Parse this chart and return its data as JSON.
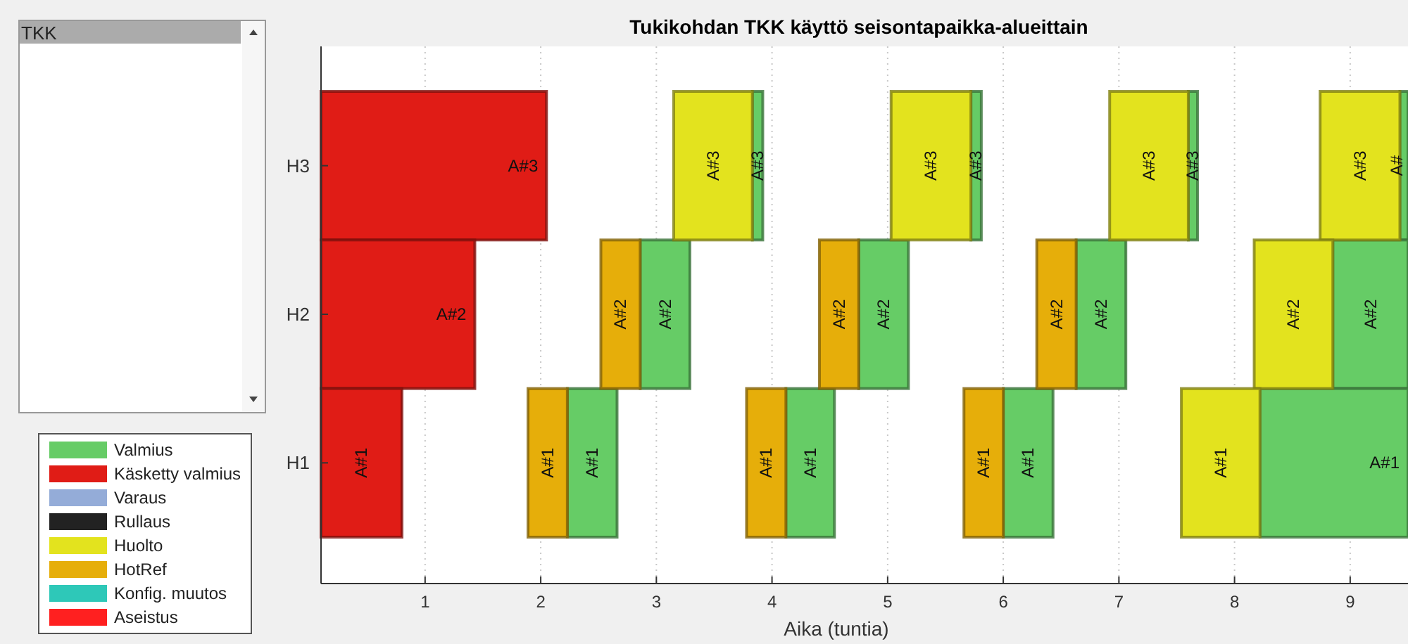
{
  "chart_data": {
    "type": "bar",
    "orientation": "horizontal",
    "title": "Tukikohdan TKK käyttö seisontapaikka-alueittain",
    "xlabel": "Aika (tuntia)",
    "categories": [
      "H3",
      "H2",
      "H1"
    ],
    "xlim": [
      0.1,
      9.5
    ],
    "xticks": [
      1,
      2,
      3,
      4,
      5,
      6,
      7,
      8,
      9
    ],
    "grid": "x",
    "legend": "left",
    "annotations": [
      "TKK",
      {
        "text": "A#3",
        "x": 2.05,
        "y": "H3"
      },
      {
        "text": "A#2",
        "x": 1.43,
        "y": "H2"
      },
      {
        "text": "A#1",
        "x": 0.8,
        "y": "H1"
      },
      {
        "text": "A#3",
        "x": 3.92,
        "y": "H3"
      },
      {
        "text": "A#2",
        "x": 3.29,
        "y": "H2"
      },
      {
        "text": "A#1",
        "x": 2.66,
        "y": "H1"
      },
      {
        "text": "A#3",
        "x": 3.83,
        "y": "H3"
      },
      {
        "text": "A#2",
        "x": 2.86,
        "y": "H2"
      },
      {
        "text": "A#1",
        "x": 2.23,
        "y": "H1"
      },
      {
        "text": "A#3",
        "x": 5.81,
        "y": "H3"
      },
      {
        "text": "A#2",
        "x": 5.18,
        "y": "H2"
      },
      {
        "text": "A#1",
        "x": 4.54,
        "y": "H1"
      },
      {
        "text": "A#3",
        "x": 5.72,
        "y": "H3"
      },
      {
        "text": "A#2",
        "x": 4.75,
        "y": "H2"
      },
      {
        "text": "A#1",
        "x": 4.12,
        "y": "H1"
      },
      {
        "text": "A#3",
        "x": 7.68,
        "y": "H3"
      },
      {
        "text": "A#2",
        "x": 7.06,
        "y": "H2"
      },
      {
        "text": "A#1",
        "x": 6.43,
        "y": "H1"
      },
      {
        "text": "A#3",
        "x": 7.6,
        "y": "H3"
      },
      {
        "text": "A#2",
        "x": 6.63,
        "y": "H2"
      },
      {
        "text": "A#1",
        "x": 6.0,
        "y": "H1"
      },
      {
        "text": "A#",
        "x": 9.5,
        "y": "H3"
      },
      {
        "text": "A#2",
        "x": 9.5,
        "y": "H2"
      },
      {
        "text": "A#1",
        "x": 9.5,
        "y": "H1"
      },
      {
        "text": "A#3",
        "x": 9.43,
        "y": "H3"
      },
      {
        "text": "A#2",
        "x": 8.85,
        "y": "H2"
      },
      {
        "text": "A#1",
        "x": 8.22,
        "y": "H1"
      }
    ],
    "series": [
      {
        "name": "Valmius",
        "color": "#66cc66",
        "base": [
          3.83,
          2.86,
          2.23
        ],
        "values": [
          0.09,
          0.43,
          0.43
        ]
      },
      {
        "name": "Käsketty valmius",
        "color": "#e01c16",
        "base": [
          0.1,
          0.1,
          0.1
        ],
        "values": [
          1.95,
          1.33,
          0.7
        ]
      },
      {
        "name": "Varaus",
        "color": "#94acd8",
        "base": [
          null,
          null,
          null
        ],
        "values": [
          null,
          null,
          null
        ]
      },
      {
        "name": "Rullaus",
        "color": "#222222",
        "base": [
          null,
          null,
          null
        ],
        "values": [
          null,
          null,
          null
        ]
      },
      {
        "name": "Huolto",
        "color": "#e3e31e",
        "base": [
          3.15,
          null,
          null
        ],
        "values": [
          0.68,
          null,
          null
        ]
      },
      {
        "name": "HotRef",
        "color": "#e6ae0a",
        "base": [
          null,
          2.52,
          1.89
        ],
        "values": [
          null,
          0.34,
          0.34
        ]
      },
      {
        "name": "Konfig. muutos",
        "color": "#2ec8b8",
        "base": [
          null,
          null,
          null
        ],
        "values": [
          null,
          null,
          null
        ]
      },
      {
        "name": "Aseistus",
        "color": "#ff2020",
        "base": [
          null,
          null,
          null
        ],
        "values": [
          null,
          null,
          null
        ]
      },
      {
        "color": "#66cc66",
        "base": [
          5.72,
          4.75,
          4.12
        ],
        "values": [
          0.09,
          0.43,
          0.42
        ]
      },
      {
        "color": "#66cc66",
        "base": [
          7.6,
          6.63,
          6.0
        ],
        "values": [
          0.08,
          0.43,
          0.43
        ]
      },
      {
        "color": "#66cc66",
        "base": [
          9.43,
          8.85,
          8.22
        ],
        "values": [
          0.07,
          0.65,
          1.28
        ]
      },
      {
        "color": "#e3e31e",
        "base": [
          5.03,
          null,
          null
        ],
        "values": [
          0.69,
          null,
          null
        ]
      },
      {
        "color": "#e3e31e",
        "base": [
          6.92,
          null,
          null
        ],
        "values": [
          0.68,
          null,
          null
        ]
      },
      {
        "color": "#e3e31e",
        "base": [
          8.74,
          8.17,
          7.54
        ],
        "values": [
          0.69,
          0.68,
          0.68
        ]
      },
      {
        "color": "#e6ae0a",
        "base": [
          null,
          4.41,
          3.78
        ],
        "values": [
          null,
          0.34,
          0.34
        ]
      },
      {
        "color": "#e6ae0a",
        "base": [
          null,
          6.29,
          5.66
        ],
        "values": [
          null,
          0.34,
          0.34
        ]
      }
    ]
  }
}
